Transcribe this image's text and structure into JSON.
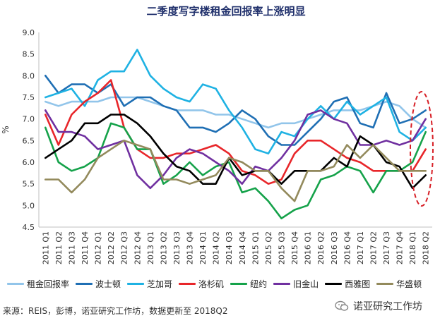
{
  "chart_data": {
    "type": "line",
    "title": "二季度写字楼租金回报率上涨明显",
    "ylabel": "%",
    "xlabel": "",
    "ylim": [
      4.5,
      9.0
    ],
    "yticks": [
      "9.0",
      "8.5",
      "8.0",
      "7.5",
      "7.0",
      "6.5",
      "6.0",
      "5.5",
      "5.0",
      "4.5"
    ],
    "grid": false,
    "legend_position": "bottom",
    "categories": [
      "2011 Q1",
      "2011 Q2",
      "2011 Q3",
      "2011 Q4",
      "2012 Q1",
      "2012 Q2",
      "2012 Q3",
      "2012 Q4",
      "2013 Q1",
      "2013 Q2",
      "2013 Q3",
      "2013 Q4",
      "2014 Q1",
      "2014 Q2",
      "2014 Q3",
      "2014 Q4",
      "2015 Q1",
      "2015 Q2",
      "2015 Q3",
      "2015 Q4",
      "2016 Q1",
      "2016 Q2",
      "2016 Q3",
      "2016 Q4",
      "2017 Q1",
      "2017 Q2",
      "2017 Q3",
      "2017 Q4",
      "2018 Q1",
      "2018 Q2"
    ],
    "series": [
      {
        "name": "租金回报率",
        "color": "#92c5ea",
        "values": [
          7.4,
          7.3,
          7.4,
          7.4,
          7.4,
          7.5,
          7.5,
          7.5,
          7.4,
          7.3,
          7.2,
          7.2,
          7.2,
          7.1,
          7.1,
          7.0,
          6.9,
          6.8,
          6.9,
          6.9,
          7.0,
          7.1,
          7.2,
          7.2,
          7.2,
          7.3,
          7.4,
          7.3,
          7.0,
          6.8
        ]
      },
      {
        "name": "波士顿",
        "color": "#1f6fb4",
        "values": [
          8.0,
          7.6,
          7.8,
          7.8,
          7.6,
          7.8,
          7.3,
          7.5,
          7.5,
          7.3,
          7.2,
          6.8,
          6.8,
          6.7,
          6.9,
          7.2,
          7.0,
          6.6,
          6.4,
          6.4,
          6.7,
          7.0,
          7.4,
          7.5,
          6.9,
          6.8,
          7.6,
          6.9,
          7.0,
          7.2
        ]
      },
      {
        "name": "芝加哥",
        "color": "#1fb2e3",
        "values": [
          7.5,
          7.6,
          7.7,
          7.3,
          7.9,
          8.1,
          8.1,
          8.6,
          8.0,
          7.7,
          7.5,
          7.4,
          7.8,
          7.7,
          7.2,
          6.8,
          6.3,
          6.2,
          6.7,
          6.6,
          7.0,
          7.3,
          7.0,
          7.4,
          7.1,
          7.3,
          7.5,
          6.7,
          6.5,
          6.8
        ]
      },
      {
        "name": "洛杉矶",
        "color": "#e8262a",
        "values": [
          7.1,
          6.4,
          7.1,
          7.4,
          7.6,
          7.9,
          6.8,
          6.3,
          6.1,
          6.1,
          6.2,
          6.2,
          6.3,
          6.4,
          6.2,
          5.8,
          5.7,
          5.5,
          5.6,
          6.2,
          6.5,
          6.5,
          6.3,
          6.1,
          6.0,
          5.8,
          5.8,
          5.8,
          5.8,
          6.3
        ]
      },
      {
        "name": "纽约",
        "color": "#15a24a",
        "values": [
          6.8,
          6.0,
          5.8,
          5.9,
          6.1,
          6.9,
          6.8,
          6.3,
          6.3,
          5.5,
          5.7,
          6.0,
          5.7,
          5.9,
          6.0,
          5.3,
          5.4,
          5.1,
          4.7,
          4.9,
          5.0,
          5.6,
          5.7,
          5.9,
          5.8,
          5.3,
          5.8,
          5.8,
          6.0,
          6.7
        ]
      },
      {
        "name": "旧金山",
        "color": "#7030a0",
        "values": [
          7.2,
          6.7,
          6.7,
          6.6,
          6.3,
          6.4,
          6.5,
          5.7,
          5.4,
          5.7,
          6.1,
          6.3,
          6.2,
          6.0,
          5.8,
          5.5,
          5.9,
          5.8,
          6.1,
          6.5,
          7.1,
          7.2,
          7.0,
          6.9,
          6.4,
          6.4,
          6.5,
          6.4,
          6.5,
          7.0
        ]
      },
      {
        "name": "西雅图",
        "color": "#000000",
        "values": [
          6.1,
          6.3,
          6.5,
          6.9,
          6.9,
          7.1,
          7.1,
          6.9,
          6.6,
          6.2,
          5.9,
          5.8,
          5.5,
          5.5,
          6.1,
          5.7,
          5.8,
          5.8,
          5.5,
          5.8,
          5.8,
          5.8,
          6.1,
          5.9,
          6.6,
          6.4,
          6.0,
          5.9,
          5.4,
          5.7
        ]
      },
      {
        "name": "华盛顿",
        "color": "#938a5c",
        "values": [
          5.6,
          5.6,
          5.3,
          5.6,
          6.1,
          6.3,
          6.5,
          6.4,
          6.3,
          5.6,
          5.6,
          5.5,
          5.6,
          5.7,
          6.1,
          6.0,
          5.8,
          5.8,
          5.4,
          5.1,
          5.8,
          5.8,
          5.9,
          6.4,
          6.1,
          6.4,
          6.1,
          5.8,
          5.8,
          5.8
        ]
      }
    ]
  },
  "footer": {
    "source": "来源：REIS，彭博，诺亚研究工作坊，数据更新至 2018Q2",
    "brand": "诺亚研究工作坊"
  },
  "icons": {
    "brand": "wechat-icon"
  }
}
